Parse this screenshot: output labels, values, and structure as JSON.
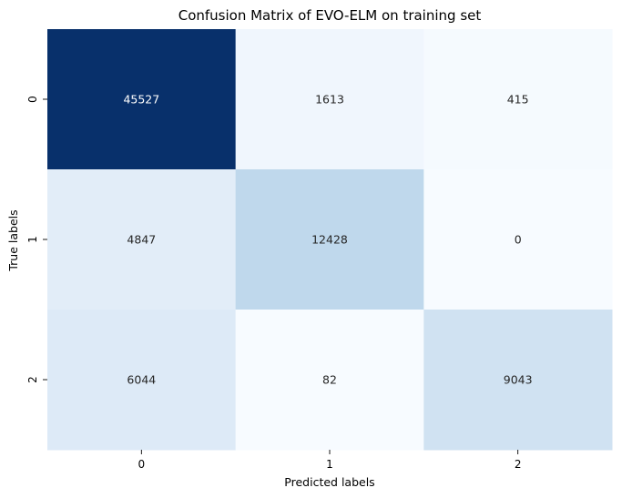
{
  "chart_data": {
    "type": "heatmap",
    "title": "Confusion Matrix of EVO-ELM on training set",
    "xlabel": "Predicted labels",
    "ylabel": "True labels",
    "x_categories": [
      "0",
      "1",
      "2"
    ],
    "y_categories": [
      "0",
      "1",
      "2"
    ],
    "values": [
      [
        45527,
        1613,
        415
      ],
      [
        4847,
        12428,
        0
      ],
      [
        6044,
        82,
        9043
      ]
    ],
    "colormap": "Blues",
    "colorbar": false,
    "annotations": true,
    "grid": false
  }
}
